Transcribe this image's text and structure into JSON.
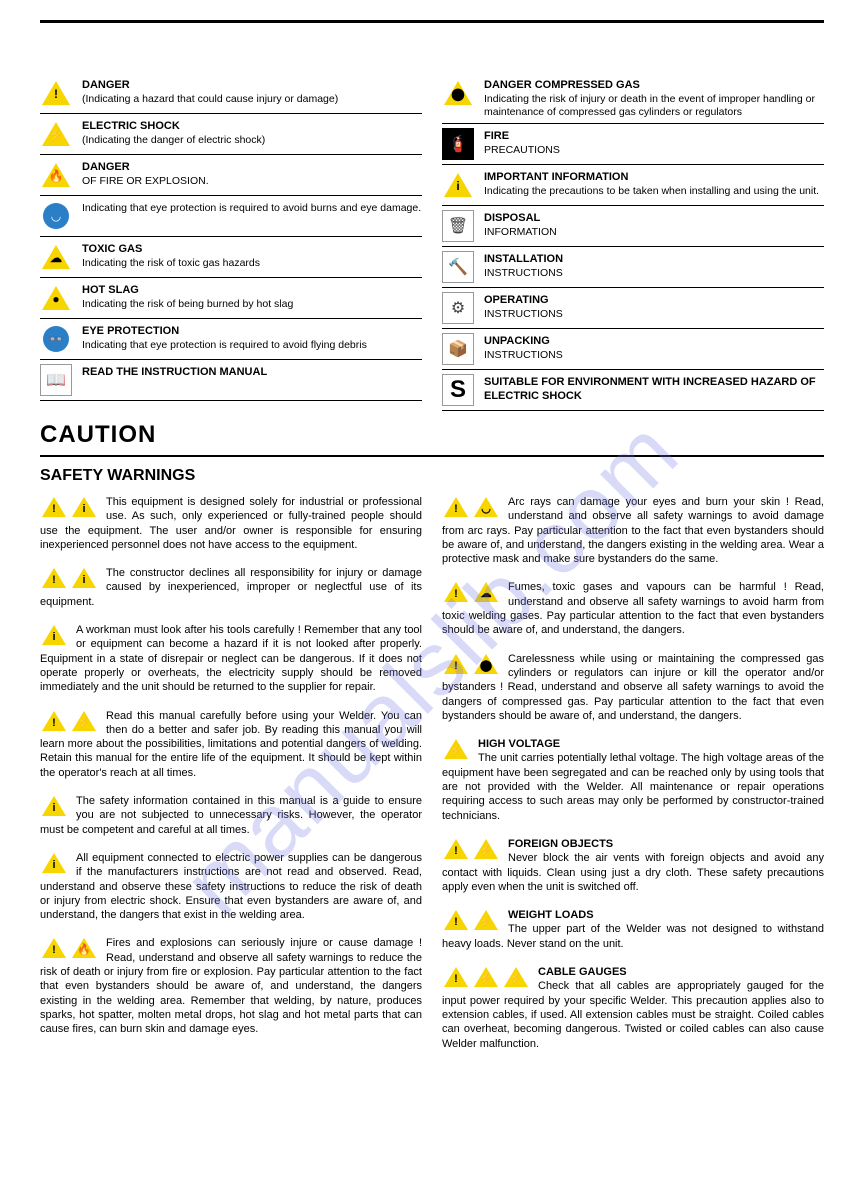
{
  "watermark": "manualslib.com",
  "caution_heading": "CAUTION",
  "safety_heading": "SAFETY WARNINGS",
  "legend_left": [
    {
      "icon": "tri",
      "glyph": "!",
      "title": "DANGER",
      "desc": "(Indicating a hazard that could cause injury or damage)"
    },
    {
      "icon": "tri",
      "glyph": "⚡",
      "title": "ELECTRIC SHOCK",
      "desc": "(Indicating the danger of electric shock)"
    },
    {
      "icon": "tri",
      "glyph": "🔥",
      "title": "DANGER",
      "desc": "OF FIRE OR EXPLOSION."
    },
    {
      "icon": "circ",
      "glyph": "◡",
      "title": "",
      "desc": "Indicating that eye protection is required to avoid burns and eye damage."
    },
    {
      "icon": "tri",
      "glyph": "☁",
      "title": "TOXIC GAS",
      "desc": "Indicating the risk of toxic gas hazards"
    },
    {
      "icon": "tri",
      "glyph": "●",
      "title": "HOT SLAG",
      "desc": "Indicating the risk of being burned by hot slag"
    },
    {
      "icon": "circ",
      "glyph": "👓",
      "title": "EYE PROTECTION",
      "desc": "Indicating that eye protection is required to avoid flying debris"
    },
    {
      "icon": "sq-white",
      "glyph": "📖",
      "title": "READ THE INSTRUCTION MANUAL",
      "desc": ""
    }
  ],
  "legend_right": [
    {
      "icon": "tri",
      "glyph": "⬤",
      "title": "DANGER COMPRESSED GAS",
      "desc": "Indicating the risk of injury or death in the event of improper handling or maintenance of compressed gas cylinders or regulators"
    },
    {
      "icon": "sq-black",
      "glyph": "🧯",
      "title": "FIRE",
      "desc": "PRECAUTIONS"
    },
    {
      "icon": "tri",
      "glyph": "i",
      "title": "IMPORTANT INFORMATION",
      "desc": "Indicating the precautions to be taken when installing and using the unit."
    },
    {
      "icon": "sq-white",
      "glyph": "🗑",
      "title": "DISPOSAL",
      "desc": "INFORMATION"
    },
    {
      "icon": "sq-white",
      "glyph": "🔨",
      "title": "INSTALLATION",
      "desc": "INSTRUCTIONS"
    },
    {
      "icon": "sq-white",
      "glyph": "⚙",
      "title": "OPERATING",
      "desc": "INSTRUCTIONS"
    },
    {
      "icon": "sq-white",
      "glyph": "📦",
      "title": "UNPACKING",
      "desc": "INSTRUCTIONS"
    },
    {
      "icon": "sq-black-s",
      "glyph": "S",
      "title": "SUITABLE FOR ENVIRONMENT WITH INCREASED HAZARD OF ELECTRIC SHOCK",
      "desc": ""
    }
  ],
  "body_left": [
    {
      "icons": [
        "!",
        "i"
      ],
      "title": "",
      "text": "This equipment is designed solely for industrial or professional use. As such, only experienced or fully-trained people should use the equipment. The user and/or owner is responsible for ensuring inexperienced personnel does not have access to the equipment."
    },
    {
      "icons": [
        "!",
        "i"
      ],
      "title": "",
      "text": "The constructor declines all responsibility for injury or damage caused by inexperienced, improper or neglectful use of its equipment."
    },
    {
      "icons": [
        "i"
      ],
      "title": "",
      "text": "A workman must look after his tools carefully ! Remember that any tool or equipment can become a hazard if it is not looked after properly.\nEquipment in a state of disrepair or neglect can be dangerous. If it does not operate properly or overheats, the electricity supply should be removed immediately and the unit should be returned to the supplier for repair."
    },
    {
      "icons": [
        "!",
        "⚡"
      ],
      "title": "",
      "text": "Read this manual carefully before using your Welder. You can then do a better and safer job.\nBy reading this manual you will learn more about the possibilities, limitations and potential dangers of welding.\nRetain this manual for the entire life of the equipment. It should be kept within the operator's reach at all times."
    },
    {
      "icons": [
        "i"
      ],
      "title": "",
      "text": "The safety information contained in this manual is a guide to ensure you are not subjected to unnecessary risks. However, the operator must be competent and careful at all times."
    },
    {
      "icons": [
        "i"
      ],
      "title": "",
      "text": "All equipment connected to electric power supplies can be dangerous if the manufacturers instructions are not read and observed. Read, understand and observe these safety instructions to reduce the risk of death or injury from electric shock. Ensure that even bystanders are aware of, and understand, the dangers that exist in the welding area."
    },
    {
      "icons": [
        "!",
        "🔥"
      ],
      "title": "",
      "text": "Fires and explosions can seriously injure or cause damage ! Read, understand and observe all safety warnings to reduce the risk of death or injury from fire or explosion. Pay particular attention to the fact that even bystanders should be aware of, and understand, the dangers existing in the welding area. Remember that welding, by nature, produces sparks, hot spatter, molten metal drops, hot slag and hot metal parts that can cause fires, can burn skin and damage eyes."
    }
  ],
  "body_right": [
    {
      "icons": [
        "!",
        "◡"
      ],
      "title": "",
      "text": "Arc rays can damage your eyes and burn your skin ! Read, understand and observe all safety warnings to avoid damage from arc rays. Pay particular attention to the fact that even bystanders should be aware of, and understand, the dangers existing in the welding area. Wear a protective mask and make sure bystanders do the same."
    },
    {
      "icons": [
        "!",
        "☁"
      ],
      "title": "",
      "text": "Fumes, toxic gases and vapours can be harmful ! Read, understand and observe all safety warnings to avoid harm from toxic welding gases. Pay particular attention to the fact that even bystanders should be aware of, and understand, the dangers."
    },
    {
      "icons": [
        "!",
        "⬤"
      ],
      "title": "",
      "text": "Carelessness while using or maintaining the compressed gas cylinders or regulators can injure or kill the operator and/or bystanders ! Read, understand and observe all safety warnings to avoid the dangers of compressed gas. Pay particular attention to the fact that even bystanders should be aware of, and understand, the dangers."
    },
    {
      "icons": [
        "⚡"
      ],
      "title": "HIGH VOLTAGE",
      "text": "The unit carries potentially lethal voltage.\nThe high voltage areas of the equipment have been segregated and can be reached only by using tools that are not provided with the Welder.\nAll maintenance or repair operations requiring access to such areas may only be performed by constructor-trained technicians."
    },
    {
      "icons": [
        "!",
        "⚡"
      ],
      "title": "FOREIGN OBJECTS",
      "text": "Never block the air vents with foreign objects and avoid any contact with liquids. Clean using just a dry cloth. These safety precautions apply even when the unit is switched off."
    },
    {
      "icons": [
        "!",
        "⚡"
      ],
      "title": "WEIGHT LOADS",
      "text": "The upper part of the Welder was not designed to withstand heavy loads. Never stand on the unit."
    },
    {
      "icons": [
        "!",
        "⚡",
        "⚡"
      ],
      "title": "CABLE GAUGES",
      "text": "Check that all cables are appropriately gauged for the input power required by your specific Welder. This precaution applies also to extension cables, if used. All extension cables must be straight. Coiled cables can overheat, becoming dangerous. Twisted or coiled cables can also cause Welder malfunction."
    }
  ]
}
